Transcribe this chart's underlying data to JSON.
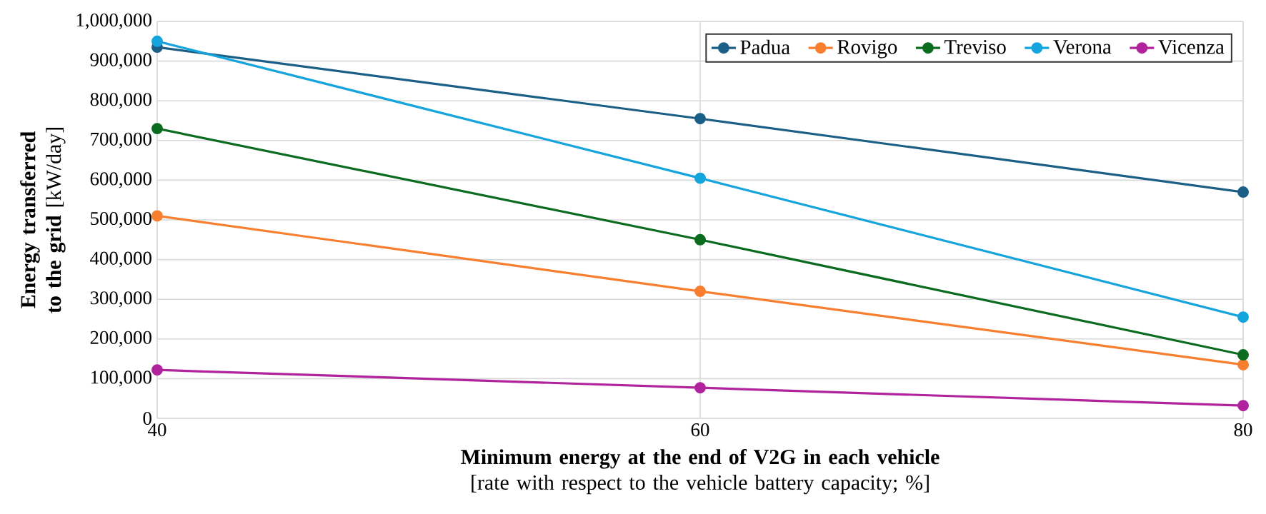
{
  "chart_data": {
    "type": "line",
    "xlabel": "**Minimum energy at the end of V2G in each vehicle** [rate with respect to the vehicle battery capacity; %]",
    "ylabel": "**Energy transferred to the grid** [kW/day]",
    "x": [
      40,
      60,
      80
    ],
    "xlim": [
      40,
      80
    ],
    "xticks": [
      40,
      60,
      80
    ],
    "ylim": [
      0,
      1000000
    ],
    "yticks": [
      {
        "value": 0,
        "label": "0"
      },
      {
        "value": 100000,
        "label": "100,000"
      },
      {
        "value": 200000,
        "label": "200,000"
      },
      {
        "value": 300000,
        "label": "300,000"
      },
      {
        "value": 400000,
        "label": "400,000"
      },
      {
        "value": 500000,
        "label": "500,000"
      },
      {
        "value": 600000,
        "label": "600,000"
      },
      {
        "value": 700000,
        "label": "700,000"
      },
      {
        "value": 800000,
        "label": "800,000"
      },
      {
        "value": 900000,
        "label": "900,000"
      },
      {
        "value": 1000000,
        "label": "1,000,000"
      }
    ],
    "series": [
      {
        "name": "Padua",
        "color": "#1b5f86",
        "values": [
          935000,
          755000,
          570000
        ]
      },
      {
        "name": "Rovigo",
        "color": "#f77f2f",
        "values": [
          510000,
          320000,
          135000
        ]
      },
      {
        "name": "Treviso",
        "color": "#0b6b1f",
        "values": [
          730000,
          450000,
          160000
        ]
      },
      {
        "name": "Verona",
        "color": "#16a4dc",
        "values": [
          950000,
          605000,
          255000
        ]
      },
      {
        "name": "Vicenza",
        "color": "#b0239c",
        "values": [
          122000,
          77000,
          32000
        ]
      }
    ],
    "grid": true,
    "legend": "top right",
    "marker": "circle",
    "line_style": "solid"
  }
}
